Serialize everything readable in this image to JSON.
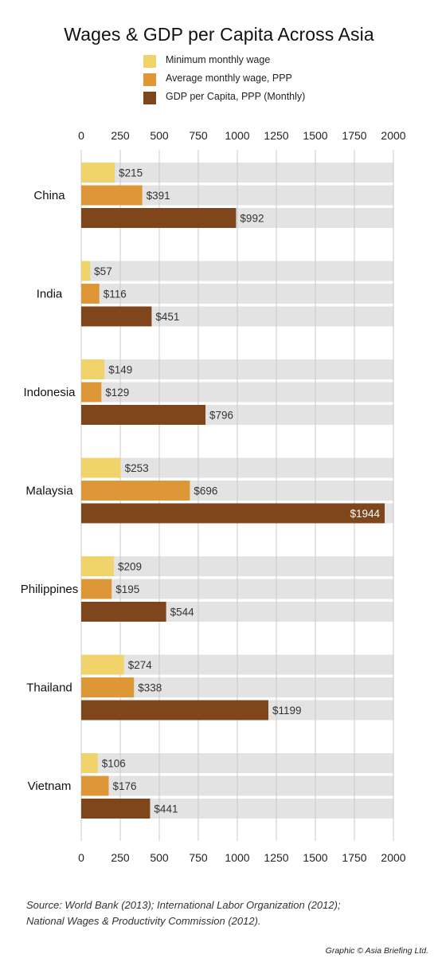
{
  "chart_data": {
    "type": "bar",
    "orientation": "horizontal",
    "title": "Wages & GDP per Capita Across Asia",
    "categories": [
      "China",
      "India",
      "Indonesia",
      "Malaysia",
      "Philippines",
      "Thailand",
      "Vietnam"
    ],
    "series": [
      {
        "name": "Minimum monthly wage",
        "color": "#f0d36a",
        "values": [
          215,
          57,
          149,
          253,
          209,
          274,
          106
        ],
        "labels": [
          "$215",
          "$57",
          "$149",
          "$253",
          "$209",
          "$274",
          "$106"
        ]
      },
      {
        "name": "Average monthly wage, PPP",
        "color": "#de9736",
        "values": [
          391,
          116,
          129,
          696,
          195,
          338,
          176
        ],
        "labels": [
          "$391",
          "$116",
          "$129",
          "$696",
          "$195",
          "$338",
          "$176"
        ]
      },
      {
        "name": "GDP per Capita, PPP (Monthly)",
        "color": "#7f461c",
        "values": [
          992,
          451,
          796,
          1944,
          544,
          1199,
          441
        ],
        "labels": [
          "$992",
          "$451",
          "$796",
          "$1944",
          "$544",
          "$1199",
          "$441"
        ]
      }
    ],
    "xlim": [
      0,
      2000
    ],
    "xticks": [
      "0",
      "250",
      "500",
      "750",
      "1000",
      "1250",
      "1500",
      "1750",
      "2000"
    ],
    "track_color": "#e3e3e3",
    "grid_color": "#c8c8c8",
    "legend_position": "top"
  },
  "source": {
    "line1": "Source: World Bank (2013); International Labor Organization (2012);",
    "line2": "National Wages & Productivity Commission (2012)."
  },
  "credit": "Graphic © Asia Briefing Ltd."
}
